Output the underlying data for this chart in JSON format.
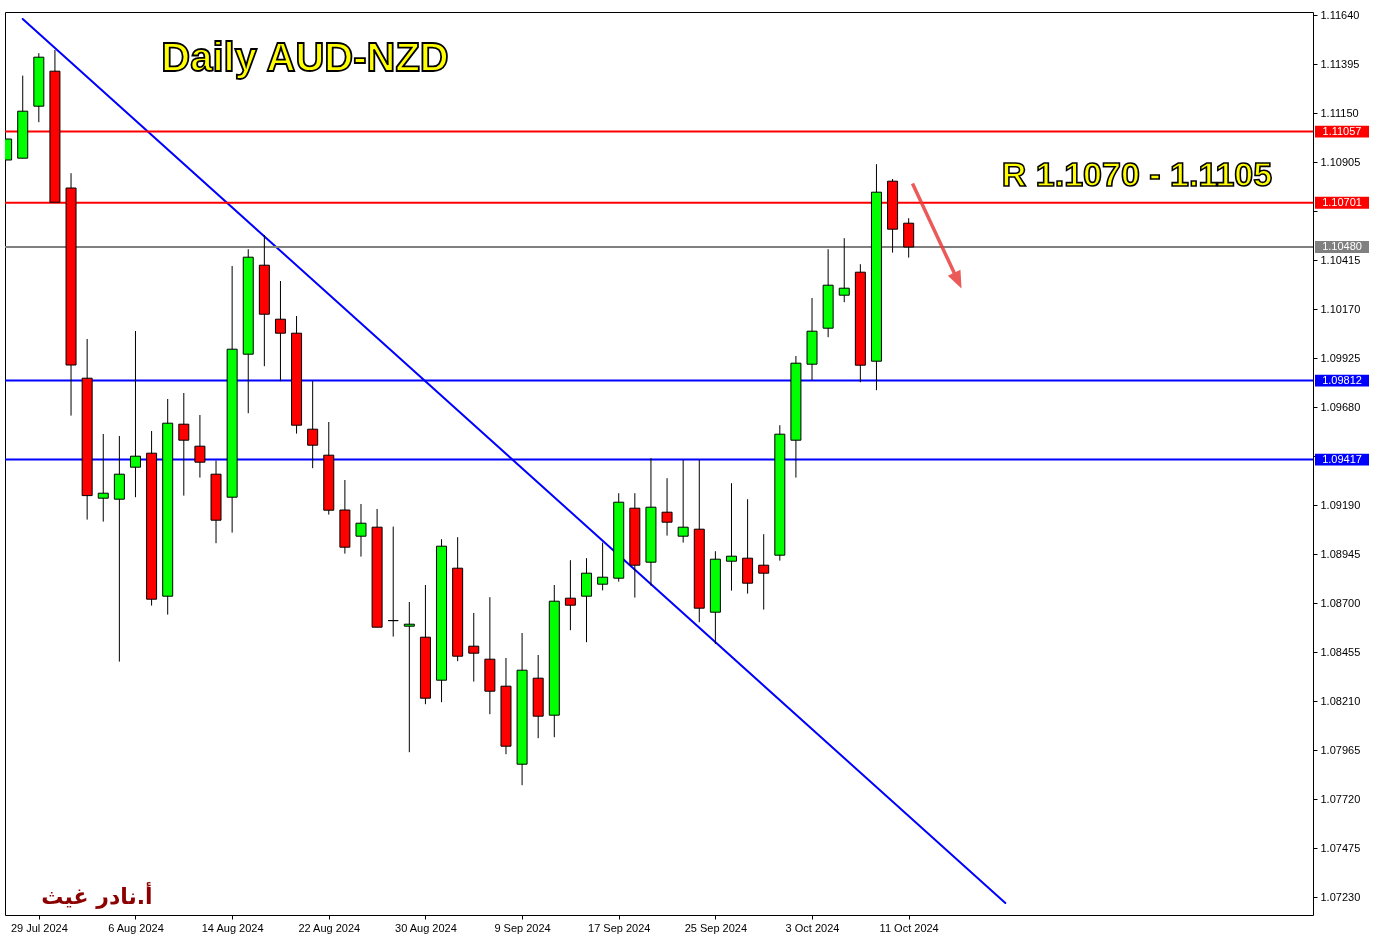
{
  "chart_data": {
    "type": "candlestick",
    "title": "Daily AUD-NZD",
    "categories": [
      null,
      null,
      "29 Jul 2024",
      null,
      null,
      null,
      null,
      null,
      "6 Aug 2024",
      null,
      null,
      null,
      null,
      null,
      "14 Aug 2024",
      null,
      null,
      null,
      null,
      null,
      "22 Aug 2024",
      null,
      null,
      null,
      null,
      null,
      "30 Aug 2024",
      null,
      null,
      null,
      null,
      null,
      "9 Sep 2024",
      null,
      null,
      null,
      null,
      null,
      "17 Sep 2024",
      null,
      null,
      null,
      null,
      null,
      "25 Sep 2024",
      null,
      null,
      null,
      null,
      null,
      "3 Oct 2024",
      null,
      null,
      null,
      null,
      null,
      "11 Oct 2024",
      null,
      null,
      null,
      null,
      null,
      null,
      null,
      null,
      null,
      null,
      null,
      null,
      null,
      null,
      null,
      null,
      null,
      null,
      null,
      null,
      null,
      null,
      null,
      null,
      null
    ],
    "ohlc": [
      [
        1.10915,
        1.1102,
        1.10915,
        1.1102
      ],
      [
        1.10924,
        1.11337,
        1.10924,
        1.11159
      ],
      [
        1.11184,
        1.11449,
        1.11104,
        1.11429
      ],
      [
        1.11359,
        1.11465,
        1.10704,
        1.10704
      ],
      [
        1.10775,
        1.10849,
        1.09637,
        1.0989
      ],
      [
        1.09824,
        1.1002,
        1.09117,
        1.09237
      ],
      [
        1.09224,
        1.09545,
        1.09107,
        1.09249
      ],
      [
        1.09219,
        1.09535,
        1.08407,
        1.09344
      ],
      [
        1.09379,
        1.1006,
        1.09229,
        1.09434
      ],
      [
        1.09449,
        1.0956,
        1.08687,
        1.08719
      ],
      [
        1.08734,
        1.0972,
        1.08642,
        1.09599
      ],
      [
        1.09594,
        1.0975,
        1.09237,
        1.09514
      ],
      [
        1.09484,
        1.0964,
        1.09327,
        1.09404
      ],
      [
        1.09344,
        1.09412,
        1.08999,
        1.09114
      ],
      [
        1.09229,
        1.10385,
        1.09052,
        1.09969
      ],
      [
        1.09944,
        1.10469,
        1.09649,
        1.10429
      ],
      [
        1.10389,
        1.1054,
        1.09884,
        1.10144
      ],
      [
        1.10119,
        1.1031,
        1.09809,
        1.10049
      ],
      [
        1.10049,
        1.10135,
        1.09547,
        1.09589
      ],
      [
        1.09569,
        1.09809,
        1.09374,
        1.09489
      ],
      [
        1.09439,
        1.09605,
        1.09142,
        1.09164
      ],
      [
        1.09165,
        1.09315,
        1.08947,
        1.08979
      ],
      [
        1.09034,
        1.09195,
        1.08932,
        1.09099
      ],
      [
        1.09079,
        1.0917,
        1.08579,
        1.08579
      ],
      [
        1.08612,
        1.09082,
        1.08532,
        1.08612
      ],
      [
        1.08584,
        1.08705,
        1.07954,
        1.08594
      ],
      [
        1.08529,
        1.0879,
        1.08194,
        1.08224
      ],
      [
        1.08314,
        1.09019,
        1.08204,
        1.08984
      ],
      [
        1.08874,
        1.09029,
        1.08409,
        1.08434
      ],
      [
        1.08484,
        1.0865,
        1.08307,
        1.08449
      ],
      [
        1.08419,
        1.08729,
        1.08144,
        1.08259
      ],
      [
        1.08284,
        1.08425,
        1.07944,
        1.07984
      ],
      [
        1.07894,
        1.0855,
        1.07789,
        1.08364
      ],
      [
        1.08324,
        1.0844,
        1.08024,
        1.08134
      ],
      [
        1.08139,
        1.0879,
        1.08029,
        1.08709
      ],
      [
        1.08724,
        1.08914,
        1.08564,
        1.08689
      ],
      [
        1.08734,
        1.08924,
        1.08504,
        1.08849
      ],
      [
        1.08794,
        1.09002,
        1.08763,
        1.08829
      ],
      [
        1.08824,
        1.09249,
        1.08807,
        1.09204
      ],
      [
        1.09174,
        1.09249,
        1.08727,
        1.08889
      ],
      [
        1.08904,
        1.09424,
        1.08787,
        1.09179
      ],
      [
        1.09154,
        1.09324,
        1.09037,
        1.09104
      ],
      [
        1.09034,
        1.09415,
        1.09002,
        1.09079
      ],
      [
        1.09069,
        1.09415,
        1.08604,
        1.08674
      ],
      [
        1.08654,
        1.08959,
        1.08495,
        1.08919
      ],
      [
        1.08909,
        1.09299,
        1.08762,
        1.08934
      ],
      [
        1.08924,
        1.09219,
        1.08747,
        1.08799
      ],
      [
        1.08889,
        1.09044,
        1.08667,
        1.08849
      ],
      [
        1.08939,
        1.09589,
        1.08912,
        1.09544
      ],
      [
        1.09514,
        1.09935,
        1.09327,
        1.09899
      ],
      [
        1.09894,
        1.10225,
        1.09815,
        1.10059
      ],
      [
        1.10074,
        1.10469,
        1.10029,
        1.10289
      ],
      [
        1.10239,
        1.10524,
        1.10204,
        1.10274
      ],
      [
        1.10354,
        1.10394,
        1.09804,
        1.09889
      ],
      [
        1.09909,
        1.10894,
        1.09764,
        1.10754
      ],
      [
        1.10809,
        1.1082,
        1.10452,
        1.10569
      ],
      [
        1.10599,
        1.10624,
        1.10427,
        1.1048
      ],
      null,
      null,
      null,
      null,
      null,
      null,
      null,
      null,
      null,
      null,
      null,
      null,
      null,
      null,
      null,
      null,
      null,
      null,
      null,
      null,
      null,
      null,
      null,
      null,
      null
    ],
    "colors": [
      "#00ff00",
      "#00ff00",
      "#00ff00",
      "#ff0000",
      "#ff0000",
      "#ff0000",
      "#00ff00",
      "#00ff00",
      "#00ff00",
      "#ff0000",
      "#00ff00",
      "#ff0000",
      "#ff0000",
      "#ff0000",
      "#00ff00",
      "#00ff00",
      "#ff0000",
      "#ff0000",
      "#ff0000",
      "#ff0000",
      "#ff0000",
      "#ff0000",
      "#00ff00",
      "#ff0000",
      "#000000",
      "#00ff00",
      "#ff0000",
      "#00ff00",
      "#ff0000",
      "#ff0000",
      "#ff0000",
      "#ff0000",
      "#00ff00",
      "#ff0000",
      "#00ff00",
      "#ff0000",
      "#00ff00",
      "#00ff00",
      "#00ff00",
      "#ff0000",
      "#00ff00",
      "#ff0000",
      "#00ff00",
      "#ff0000",
      "#00ff00",
      "#00ff00",
      "#ff0000",
      "#ff0000",
      "#00ff00",
      "#00ff00",
      "#00ff00",
      "#00ff00",
      "#00ff00",
      "#ff0000",
      "#00ff00",
      "#ff0000",
      "#ff0000",
      null,
      null,
      null,
      null,
      null,
      null,
      null,
      null,
      null,
      null,
      null,
      null,
      null,
      null,
      null,
      null,
      null,
      null,
      null,
      null,
      null,
      null,
      null,
      null,
      null
    ],
    "series": [
      {
        "type": "line",
        "color": "#0000ff",
        "values": [
          null,
          1.1162,
          null,
          null,
          null,
          null,
          null,
          null,
          null,
          null,
          null,
          null,
          null,
          null,
          null,
          null,
          null,
          null,
          null,
          null,
          null,
          null,
          null,
          null,
          null,
          null,
          null,
          null,
          null,
          null,
          null,
          null,
          null,
          null,
          null,
          null,
          null,
          null,
          null,
          null,
          null,
          null,
          null,
          null,
          null,
          null,
          null,
          null,
          null,
          null,
          null,
          null,
          null,
          null,
          null,
          null,
          null,
          null,
          null,
          null,
          null,
          null,
          1.072,
          null,
          null,
          null,
          null,
          null,
          null,
          null,
          null,
          null,
          null,
          null,
          null,
          null,
          null,
          null,
          null,
          null,
          null,
          null
        ]
      }
    ],
    "ref_lines": [
      {
        "axis": "y",
        "value": 1.11057,
        "label": "1.11057",
        "color": "#ff0000"
      },
      {
        "axis": "y",
        "value": 1.10701,
        "label": "1.10701",
        "color": "#ff0000"
      },
      {
        "axis": "y",
        "value": 1.1048,
        "label": "1.10480",
        "color": "#808080"
      },
      {
        "axis": "y",
        "value": 1.09812,
        "label": "1.09812",
        "color": "#0000ff"
      },
      {
        "axis": "y",
        "value": 1.09417,
        "label": "1.09417",
        "color": "#0000ff"
      }
    ],
    "annotations": [
      "R 1.1070 - 1.1105",
      "أ.نادر غيث"
    ],
    "ylim": [
      1.0714,
      1.11655
    ],
    "yticks": [
      {
        "value": 1.1164,
        "label": "1.11640"
      },
      1.11395,
      {
        "value": 1.1115,
        "label": "1.11150"
      },
      1.10905,
      {
        "value": 1.1066,
        "label": null
      },
      1.10415,
      {
        "value": 1.1017,
        "label": "1.10170"
      },
      1.09925,
      {
        "value": 1.0968,
        "label": "1.09680"
      },
      {
        "value": 1.09435,
        "label": null
      },
      {
        "value": 1.0919,
        "label": "1.09190"
      },
      1.08945,
      {
        "value": 1.087,
        "label": "1.08700"
      },
      1.08455,
      {
        "value": 1.0821,
        "label": "1.08210"
      },
      1.07965,
      {
        "value": 1.0772,
        "label": "1.07720"
      },
      1.07475,
      {
        "value": 1.0723,
        "label": "1.07230"
      }
    ]
  }
}
